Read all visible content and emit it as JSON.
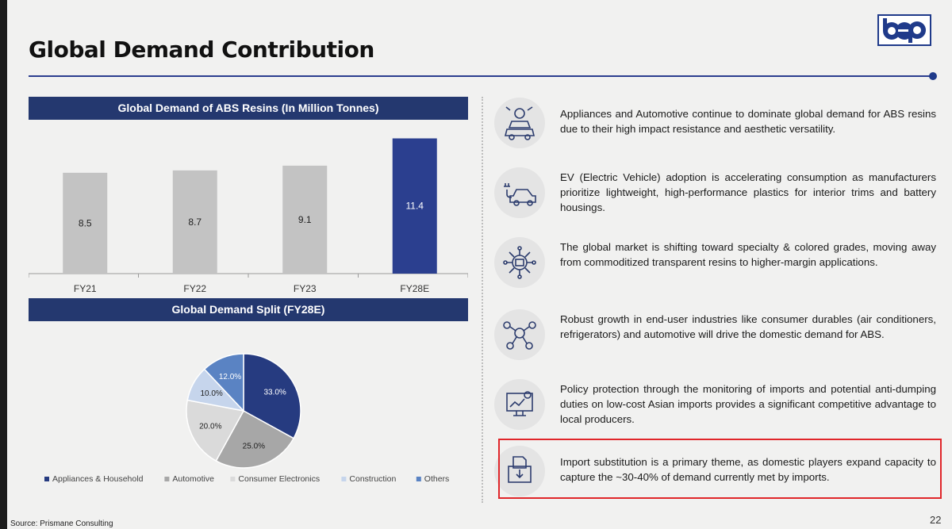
{
  "header": {
    "title": "Global Demand Contribution",
    "logo_text": "bep"
  },
  "bar_section": {
    "banner": "Global Demand of ABS Resins (In Million Tonnes)"
  },
  "pie_section": {
    "banner": "Global Demand Split (FY28E)"
  },
  "chart_data": [
    {
      "type": "bar",
      "title": "Global Demand of ABS Resins (In Million Tonnes)",
      "categories": [
        "FY21",
        "FY22",
        "FY23",
        "FY28E"
      ],
      "values": [
        8.5,
        8.7,
        9.1,
        11.4
      ],
      "value_labels": [
        "8.5",
        "8.7",
        "9.1",
        "11.4"
      ],
      "colors": [
        "#c3c3c3",
        "#c3c3c3",
        "#c3c3c3",
        "#2b3f8f"
      ],
      "xlabel": "",
      "ylabel": "",
      "ylim": [
        0,
        12
      ],
      "grid": false
    },
    {
      "type": "pie",
      "title": "Global Demand Split (FY28E)",
      "labels": [
        "Appliances & Household",
        "Automotive",
        "Consumer Electronics",
        "Construction",
        "Others"
      ],
      "values": [
        33.0,
        25.0,
        20.0,
        10.0,
        12.0
      ],
      "value_labels": [
        "33.0%",
        "25.0%",
        "20.0%",
        "10.0%",
        "12.0%"
      ],
      "colors": [
        "#263b80",
        "#a7a7a7",
        "#dadada",
        "#c6d5ec",
        "#5a83c3"
      ],
      "label_colors": [
        "#ffffff",
        "#222222",
        "#222222",
        "#222222",
        "#ffffff"
      ],
      "legend_position": "bottom"
    }
  ],
  "points": [
    {
      "icon": "appliance-automotive-icon",
      "text": "Appliances and Automotive continue to dominate global demand for ABS resins due to their high impact resistance and aesthetic versatility."
    },
    {
      "icon": "electric-vehicle-icon",
      "text": "EV (Electric Vehicle) adoption is accelerating consumption as manufacturers prioritize lightweight, high-performance plastics for interior trims and battery housings."
    },
    {
      "icon": "specialty-grades-icon",
      "text": "The global market is shifting toward specialty & colored grades, moving away from commoditized transparent resins to higher-margin applications."
    },
    {
      "icon": "industry-network-icon",
      "text": "Robust growth in end-user industries like consumer durables (air conditioners, refrigerators) and automotive will drive the domestic demand for ABS."
    },
    {
      "icon": "policy-monitoring-icon",
      "text": "Policy protection through the monitoring of imports and potential anti-dumping duties on low-cost Asian imports provides a significant competitive advantage to local producers."
    },
    {
      "icon": "import-substitution-icon",
      "text": "Import substitution is a primary theme, as domestic players expand capacity to capture the ~30-40% of demand currently met by imports."
    }
  ],
  "footer": {
    "source": "Source: Prismane Consulting",
    "page_number": "22"
  }
}
